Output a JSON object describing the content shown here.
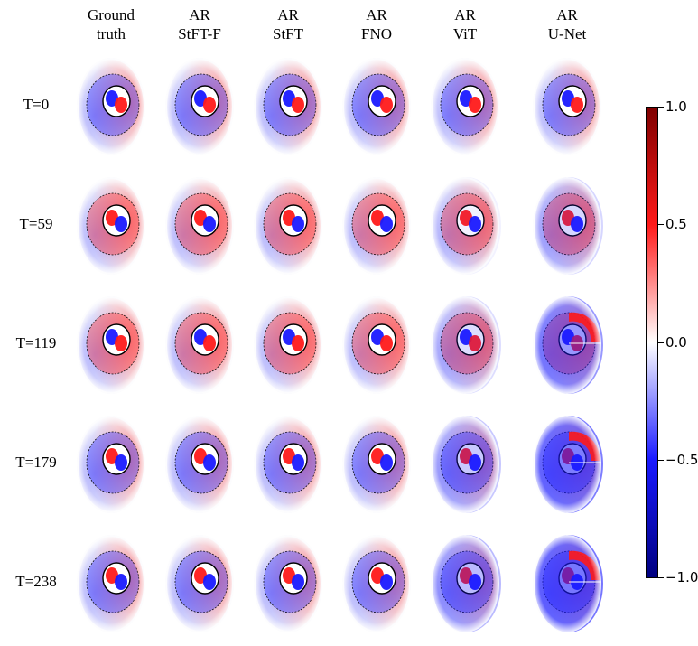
{
  "figure": {
    "columns": [
      {
        "line1": "Ground",
        "line2": "truth"
      },
      {
        "line1": "AR",
        "line2": "StFT-F"
      },
      {
        "line1": "AR",
        "line2": "StFT"
      },
      {
        "line1": "AR",
        "line2": "FNO"
      },
      {
        "line1": "AR",
        "line2": "ViT"
      },
      {
        "line1": "AR",
        "line2": "U-Net"
      }
    ],
    "rows": [
      {
        "label": "T=0",
        "outer": "red",
        "inner": "blue",
        "ring": "blue",
        "degrade": [
          0,
          0,
          0,
          0,
          0,
          0
        ]
      },
      {
        "label": "T=59",
        "outer": "red",
        "inner": "red",
        "ring": "red",
        "degrade": [
          0,
          0,
          0,
          0,
          0.1,
          0.3
        ]
      },
      {
        "label": "T=119",
        "outer": "red",
        "inner": "blue",
        "ring": "red",
        "degrade": [
          0,
          0,
          0,
          0,
          0.25,
          0.75
        ]
      },
      {
        "label": "T=179",
        "outer": "red",
        "inner": "red",
        "ring": "blue",
        "degrade": [
          0,
          0,
          0,
          0,
          0.4,
          0.95
        ]
      },
      {
        "label": "T=238",
        "outer": "red",
        "inner": "red",
        "ring": "blue",
        "degrade": [
          0,
          0,
          0,
          0,
          0.5,
          1.0
        ]
      }
    ],
    "colorbar": {
      "ticks": [
        {
          "value": 1.0,
          "label": "1.0"
        },
        {
          "value": 0.5,
          "label": "0.5"
        },
        {
          "value": 0.0,
          "label": "0.0"
        },
        {
          "value": -0.5,
          "label": "−0.5"
        },
        {
          "value": -1.0,
          "label": "−1.0"
        }
      ],
      "range": [
        -1.0,
        1.0
      ],
      "colors": {
        "min": "#00007f",
        "mid": "#ffffff",
        "max": "#7f0000",
        "blue": "#1a1aff",
        "red": "#ff1a1a"
      }
    }
  }
}
